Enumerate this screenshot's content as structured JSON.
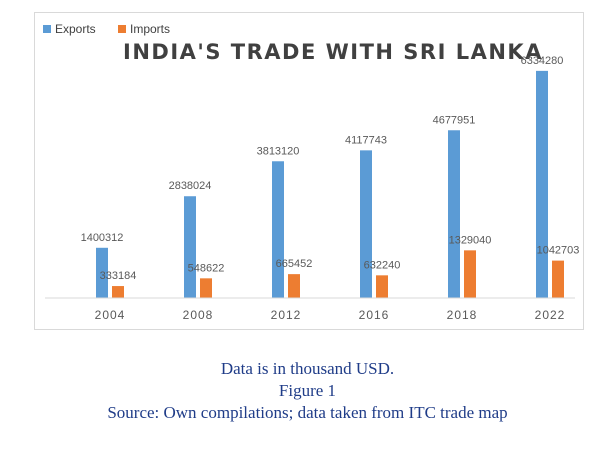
{
  "chart_data": {
    "type": "bar",
    "title": "INDIA'S TRADE WITH SRI LANKA",
    "categories": [
      "2004",
      "2008",
      "2012",
      "2016",
      "2018",
      "2022"
    ],
    "series": [
      {
        "name": "Exports",
        "color": "#5b9bd5",
        "values": [
          1400312,
          2838024,
          3813120,
          4117743,
          4677951,
          6334280
        ]
      },
      {
        "name": "Imports",
        "color": "#ed7d31",
        "values": [
          333184,
          548622,
          665452,
          632240,
          1329040,
          1042703
        ]
      }
    ],
    "ylim": [
      0,
      7000000
    ],
    "legend_position": "top-left",
    "grid": false,
    "xlabel": "",
    "ylabel": ""
  },
  "captions": {
    "note": "Data is in thousand USD.",
    "figure": "Figure 1",
    "source": "Source: Own compilations; data taken from ITC trade map"
  }
}
